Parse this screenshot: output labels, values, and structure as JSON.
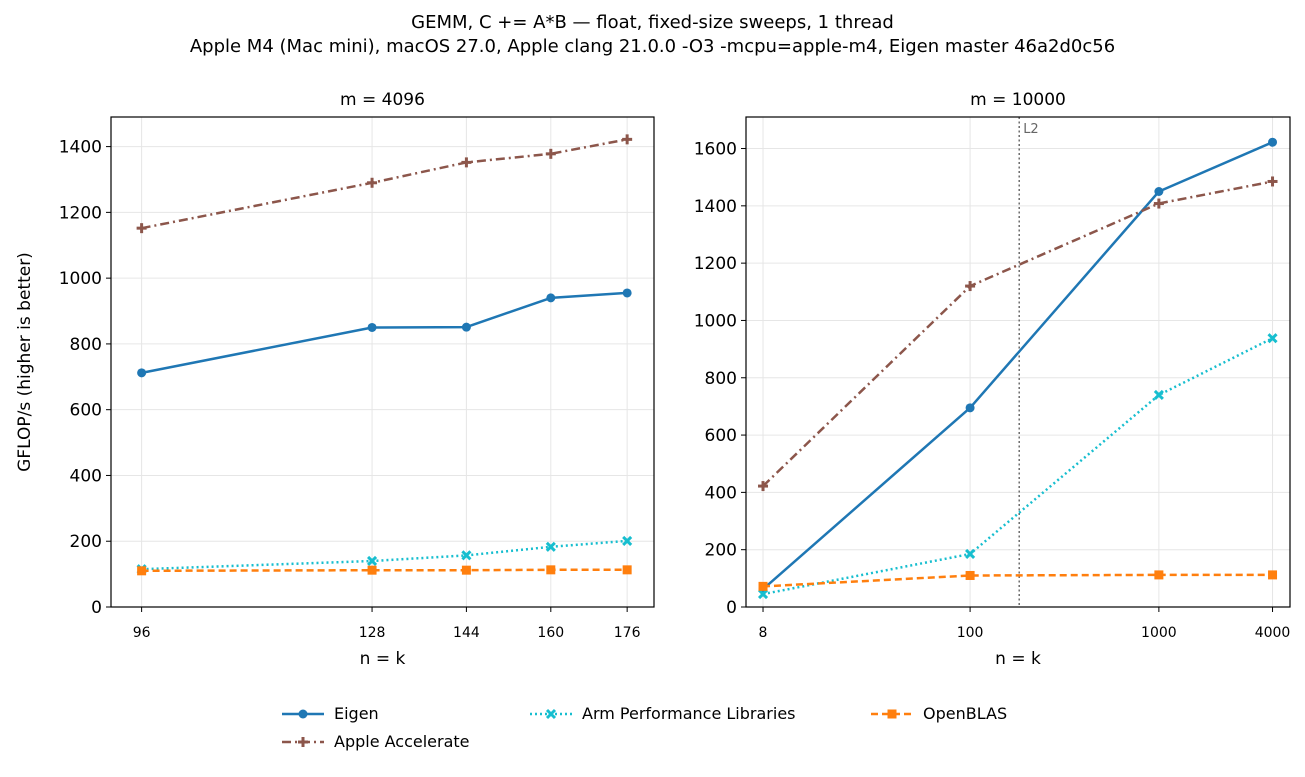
{
  "title_line1": "GEMM, C += A*B — float, fixed-size sweeps, 1 thread",
  "title_line2": "Apple M4 (Mac mini), macOS 27.0, Apple clang 21.0.0 -O3 -mcpu=apple-m4, Eigen master 46a2d0c56",
  "colors": {
    "eigen": "#1f77b4",
    "accelerate": "#8c564b",
    "armpl": "#17becf",
    "openblas": "#ff7f0e"
  },
  "legend": [
    {
      "key": "eigen",
      "label": "Eigen",
      "marker": "circle",
      "dash": "solid"
    },
    {
      "key": "accelerate",
      "label": "Apple Accelerate",
      "marker": "plus",
      "dash": "dashdot"
    },
    {
      "key": "armpl",
      "label": "Arm Performance Libraries",
      "marker": "x",
      "dash": "dotted"
    },
    {
      "key": "openblas",
      "label": "OpenBLAS",
      "marker": "square",
      "dash": "dashed"
    }
  ],
  "chart_data": [
    {
      "type": "line",
      "title": "m = 4096",
      "xlabel": "n = k",
      "ylabel": "GFLOP/s (higher is better)",
      "x_scale": "log",
      "x": [
        96,
        128,
        144,
        160,
        176
      ],
      "xticks": [
        96,
        128,
        144,
        160,
        176
      ],
      "ylim": [
        0,
        1490
      ],
      "yticks": [
        0,
        200,
        400,
        600,
        800,
        1000,
        1200,
        1400
      ],
      "grid": true,
      "series": [
        {
          "name": "Apple Accelerate",
          "key": "accelerate",
          "values": [
            1152,
            1290,
            1352,
            1378,
            1422
          ]
        },
        {
          "name": "Eigen",
          "key": "eigen",
          "values": [
            712,
            850,
            851,
            940,
            955
          ]
        },
        {
          "name": "Arm Performance Libraries",
          "key": "armpl",
          "values": [
            115,
            140,
            157,
            183,
            201
          ]
        },
        {
          "name": "OpenBLAS",
          "key": "openblas",
          "values": [
            110,
            112,
            112,
            113,
            113
          ]
        }
      ]
    },
    {
      "type": "line",
      "title": "m = 10000",
      "xlabel": "n = k",
      "ylabel": "",
      "x_scale": "log",
      "x": [
        8,
        100,
        1000,
        4000
      ],
      "xticks": [
        8,
        100,
        1000,
        4000
      ],
      "ylim": [
        0,
        1710
      ],
      "yticks": [
        0,
        200,
        400,
        600,
        800,
        1000,
        1200,
        1400,
        1600
      ],
      "grid": true,
      "vline": {
        "x": 182,
        "label": "L2"
      },
      "series": [
        {
          "name": "Eigen",
          "key": "eigen",
          "values": [
            62,
            695,
            1450,
            1622
          ]
        },
        {
          "name": "Apple Accelerate",
          "key": "accelerate",
          "values": [
            422,
            1120,
            1408,
            1485
          ]
        },
        {
          "name": "Arm Performance Libraries",
          "key": "armpl",
          "values": [
            45,
            185,
            740,
            938
          ]
        },
        {
          "name": "OpenBLAS",
          "key": "openblas",
          "values": [
            72,
            110,
            112,
            112
          ]
        }
      ]
    }
  ]
}
